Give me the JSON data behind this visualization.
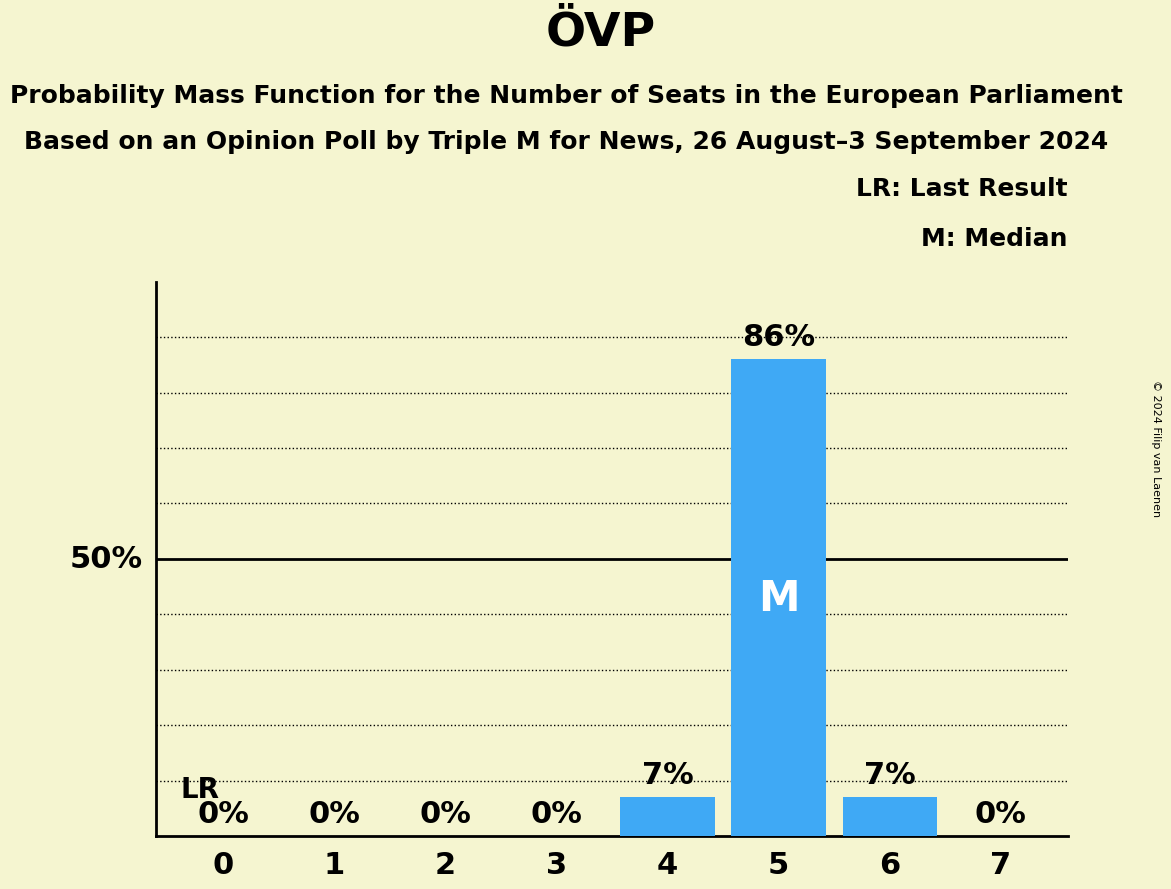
{
  "title": "ÖVP",
  "subtitle1": "Probability Mass Function for the Number of Seats in the European Parliament",
  "subtitle2": "Based on an Opinion Poll by Triple M for News, 26 August–3 September 2024",
  "copyright": "© 2024 Filip van Laenen",
  "categories": [
    0,
    1,
    2,
    3,
    4,
    5,
    6,
    7
  ],
  "values": [
    0,
    0,
    0,
    0,
    7,
    86,
    7,
    0
  ],
  "bar_color": "#3fa9f5",
  "background_color": "#f5f5d0",
  "median_seat": 5,
  "lr_label": "LR",
  "median_label": "M",
  "legend_lr": "LR: Last Result",
  "legend_m": "M: Median",
  "ylim": [
    0,
    100
  ],
  "yticks": [
    0,
    10,
    20,
    30,
    40,
    50,
    60,
    70,
    80,
    90,
    100
  ],
  "dotted_yticks": [
    10,
    20,
    30,
    40,
    60,
    70,
    80,
    90
  ],
  "solid_yticks": [
    50
  ],
  "title_fontsize": 34,
  "subtitle_fontsize": 18,
  "axis_tick_fontsize": 22,
  "bar_label_fontsize": 22,
  "legend_fontsize": 18,
  "fifty_label_fontsize": 22,
  "lr_fontsize": 20,
  "median_inner_fontsize": 30,
  "copyright_fontsize": 8
}
